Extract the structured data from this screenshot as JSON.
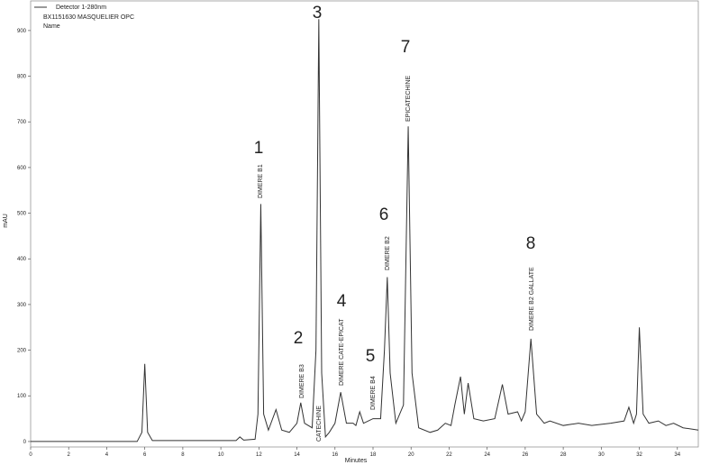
{
  "chart_data": {
    "type": "line",
    "subtitle": "BX1151630 MASQUELIER OPC",
    "caption": "Name",
    "xlabel": "Minutes",
    "ylabel": "mAU",
    "x": [
      0,
      5.6,
      5.85,
      6.0,
      6.15,
      6.4,
      10.8,
      11.0,
      11.2,
      11.8,
      11.95,
      12.1,
      12.25,
      12.5,
      12.9,
      13.2,
      13.6,
      14.0,
      14.2,
      14.4,
      14.8,
      15.0,
      15.15,
      15.3,
      15.5,
      15.7,
      16.0,
      16.3,
      16.6,
      16.95,
      17.1,
      17.3,
      17.5,
      18.0,
      18.4,
      18.6,
      18.75,
      18.9,
      19.2,
      19.6,
      19.85,
      20.05,
      20.4,
      21.0,
      21.4,
      21.8,
      22.1,
      22.3,
      22.6,
      22.8,
      23.0,
      23.3,
      23.8,
      24.4,
      24.8,
      25.1,
      25.6,
      25.8,
      26.0,
      26.3,
      26.6,
      27.0,
      27.3,
      28.0,
      28.8,
      29.5,
      30.5,
      31.2,
      31.45,
      31.7,
      31.85,
      32.0,
      32.2,
      32.5,
      33.0,
      33.4,
      33.8,
      34.3,
      35.1
    ],
    "series": [
      {
        "name": "Detector 1-280nm",
        "color": "#333333",
        "values": [
          0,
          0,
          20,
          170,
          20,
          2,
          2,
          10,
          3,
          5,
          60,
          520,
          60,
          25,
          70,
          25,
          20,
          40,
          85,
          40,
          30,
          200,
          925,
          150,
          10,
          20,
          40,
          108,
          40,
          40,
          35,
          65,
          40,
          50,
          50,
          200,
          360,
          150,
          40,
          80,
          690,
          150,
          30,
          20,
          25,
          40,
          35,
          80,
          142,
          60,
          128,
          50,
          45,
          50,
          125,
          60,
          65,
          45,
          65,
          225,
          60,
          40,
          45,
          35,
          40,
          35,
          40,
          45,
          75,
          40,
          60,
          250,
          60,
          40,
          45,
          35,
          40,
          30,
          25
        ]
      }
    ],
    "xlim": [
      0,
      35.1
    ],
    "ylim": [
      -12,
      957
    ],
    "xticks": [
      0,
      2,
      4,
      6,
      8,
      10,
      12,
      14,
      16,
      18,
      20,
      22,
      24,
      26,
      28,
      30,
      32,
      34
    ],
    "yticks": [
      0,
      100,
      200,
      300,
      400,
      500,
      600,
      700,
      800,
      900
    ],
    "annotations": [
      {
        "number": "1",
        "label": "DIMERE B1"
      },
      {
        "number": "2",
        "label": "DIMERE B3"
      },
      {
        "number": "3",
        "label": "CATECHINE"
      },
      {
        "number": "4",
        "label": "DIMERE CATE-EPICAT"
      },
      {
        "number": "5",
        "label": "DIMERE B4"
      },
      {
        "number": "6",
        "label": "DIMERE B2"
      },
      {
        "number": "7",
        "label": "EPICATECHINE"
      },
      {
        "number": "8",
        "label": "DIMERE B2 GALLATE"
      }
    ]
  }
}
